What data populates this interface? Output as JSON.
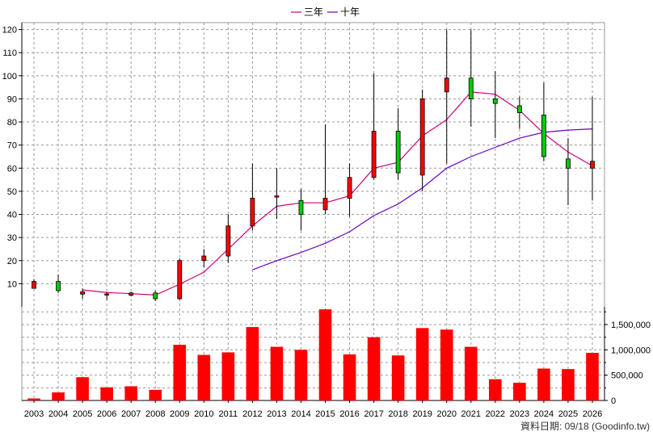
{
  "legend": {
    "ma3_label": "三年",
    "ma10_label": "十年"
  },
  "footer": {
    "source_label": "資料日期: 09/18  (Goodinfo.tw)"
  },
  "colors": {
    "up_candle": "#ff0000",
    "down_candle": "#00cc00",
    "wick": "#000000",
    "volume_bar": "#ff0000",
    "ma3_line": "#cc0077",
    "ma10_line": "#6600cc",
    "grid": "#999999",
    "background": "#ffffff"
  },
  "chart_data": {
    "type": "candlestick-with-volume",
    "categories": [
      "2003",
      "2004",
      "2005",
      "2006",
      "2007",
      "2008",
      "2009",
      "2010",
      "2011",
      "2012",
      "2013",
      "2014",
      "2015",
      "2016",
      "2017",
      "2018",
      "2019",
      "2020",
      "2021",
      "2022",
      "2023",
      "2024",
      "2025",
      "2026"
    ],
    "price_axis": {
      "ylim": [
        0,
        123
      ],
      "ticks": [
        10,
        20,
        30,
        40,
        50,
        60,
        70,
        80,
        90,
        100,
        110,
        120
      ]
    },
    "volume_axis": {
      "ylim": [
        0,
        1850000
      ],
      "ticks": [
        0,
        500000,
        1000000,
        1500000
      ],
      "tick_labels": [
        "0",
        "500,000",
        "1,000,000",
        "1,500,000"
      ]
    },
    "candles": [
      {
        "year": "2003",
        "open": 8,
        "close": 11,
        "high": 12,
        "low": 8
      },
      {
        "year": "2004",
        "open": 11,
        "close": 7,
        "high": 14,
        "low": 6
      },
      {
        "year": "2005",
        "open": 5.5,
        "close": 6.5,
        "high": 8,
        "low": 3.5
      },
      {
        "year": "2006",
        "open": 5.2,
        "close": 5.6,
        "high": 6.5,
        "low": 3
      },
      {
        "year": "2007",
        "open": 5,
        "close": 6,
        "high": 6.5,
        "low": 4.5
      },
      {
        "year": "2008",
        "open": 6,
        "close": 3.5,
        "high": 7,
        "low": 2.5
      },
      {
        "year": "2009",
        "open": 3.5,
        "close": 20,
        "high": 21,
        "low": 3
      },
      {
        "year": "2010",
        "open": 20,
        "close": 22,
        "high": 25,
        "low": 17
      },
      {
        "year": "2011",
        "open": 22,
        "close": 35,
        "high": 40,
        "low": 19
      },
      {
        "year": "2012",
        "open": 35,
        "close": 47,
        "high": 62,
        "low": 33
      },
      {
        "year": "2013",
        "open": 47.5,
        "close": 48,
        "high": 60,
        "low": 38
      },
      {
        "year": "2014",
        "open": 46,
        "close": 40,
        "high": 51,
        "low": 33
      },
      {
        "year": "2015",
        "open": 42,
        "close": 47,
        "high": 79,
        "low": 40
      },
      {
        "year": "2016",
        "open": 47,
        "close": 56,
        "high": 62,
        "low": 39
      },
      {
        "year": "2017",
        "open": 56,
        "close": 76,
        "high": 101,
        "low": 55
      },
      {
        "year": "2018",
        "open": 76,
        "close": 58,
        "high": 86,
        "low": 55
      },
      {
        "year": "2019",
        "open": 57,
        "close": 90,
        "high": 94,
        "low": 50
      },
      {
        "year": "2020",
        "open": 93,
        "close": 99,
        "high": 120,
        "low": 62
      },
      {
        "year": "2021",
        "open": 99,
        "close": 90,
        "high": 120,
        "low": 78
      },
      {
        "year": "2022",
        "open": 90,
        "close": 88,
        "high": 102,
        "low": 73
      },
      {
        "year": "2023",
        "open": 87,
        "close": 84,
        "high": 91,
        "low": 77
      },
      {
        "year": "2024",
        "open": 83,
        "close": 65,
        "high": 97,
        "low": 63
      },
      {
        "year": "2025",
        "open": 64,
        "close": 60,
        "high": 73,
        "low": 44
      },
      {
        "year": "2026",
        "open": 60,
        "close": 63,
        "high": 91,
        "low": 46
      }
    ],
    "ma3": [
      null,
      null,
      7.3,
      6.2,
      5.7,
      5.1,
      9.8,
      15,
      25,
      35,
      43.5,
      45,
      45,
      48,
      60,
      62.5,
      74,
      81,
      93,
      92,
      85,
      75,
      67,
      61
    ],
    "ma10": [
      null,
      null,
      null,
      null,
      null,
      null,
      null,
      null,
      null,
      16,
      20,
      23.5,
      27.5,
      32.5,
      39.5,
      44.5,
      51.5,
      60,
      65,
      69,
      73,
      75.5,
      76.5,
      77
    ],
    "volume": [
      40000,
      160000,
      460000,
      260000,
      280000,
      210000,
      1100000,
      900000,
      950000,
      1450000,
      1060000,
      1000000,
      1800000,
      910000,
      1250000,
      890000,
      1430000,
      1400000,
      1060000,
      420000,
      350000,
      630000,
      620000,
      940000
    ]
  }
}
